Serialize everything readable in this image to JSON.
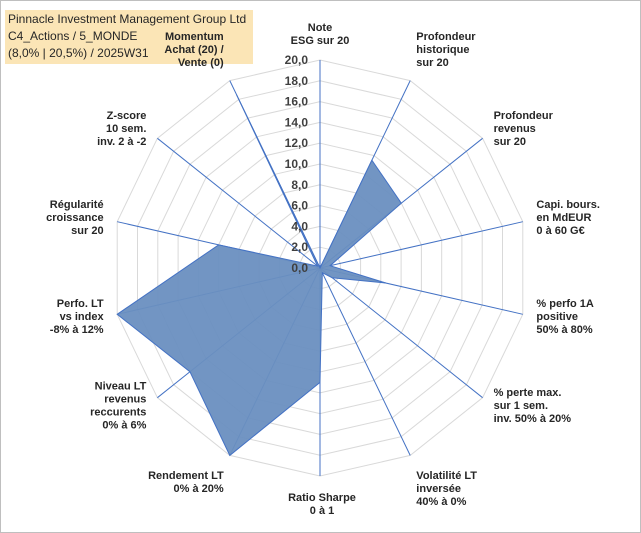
{
  "info_box": {
    "line1": "Pinnacle Investment Management Group Ltd",
    "line2": "C4_Actions / 5_MONDE",
    "line3": "(8,0% | 20,5%) / 2025W31",
    "background": "#fbe5b6"
  },
  "chart_data": {
    "type": "radar",
    "grid": true,
    "rmax": 20,
    "ticks": [
      "0,0",
      "2,0",
      "4,0",
      "6,0",
      "8,0",
      "10,0",
      "12,0",
      "14,0",
      "16,0",
      "18,0",
      "20,0"
    ],
    "colors": {
      "fill": "#6a8fc0",
      "stroke": "#4472c4",
      "grid": "#d9d9d9",
      "spoke": "#4472c4"
    },
    "axes": [
      {
        "lines": [
          "Note",
          "ESG sur 20"
        ],
        "value": 0
      },
      {
        "lines": [
          "Profondeur",
          "historique",
          "sur 20"
        ],
        "value": 11.5
      },
      {
        "lines": [
          "Profondeur",
          "revenus",
          "sur 20"
        ],
        "value": 10
      },
      {
        "lines": [
          "Capi. bours.",
          "en MdEUR",
          "0 à 60 G€"
        ],
        "value": 1
      },
      {
        "lines": [
          "% perfo 1A",
          "positive",
          "50% à 80%"
        ],
        "value": 6.5
      },
      {
        "lines": [
          "% perte max.",
          "sur 1 sem.",
          "inv. 50% à 20%"
        ],
        "value": 1.5
      },
      {
        "lines": [
          "Volatilité LT",
          "inversée",
          "40% à 0%"
        ],
        "value": 0.5
      },
      {
        "lines": [
          "Ratio Sharpe",
          "0 à 1"
        ],
        "value": 11
      },
      {
        "lines": [
          "Rendement LT",
          "0% à 20%"
        ],
        "value": 20
      },
      {
        "lines": [
          "Niveau LT",
          "revenus",
          "reccurents",
          "0% à 6%"
        ],
        "value": 16
      },
      {
        "lines": [
          "Perfo. LT",
          "vs index",
          "-8% à 12%"
        ],
        "value": 20
      },
      {
        "lines": [
          "Régularité",
          "croissance",
          "sur 20"
        ],
        "value": 10
      },
      {
        "lines": [
          "Z-score",
          "10 sem.",
          "inv. 2 à -2"
        ],
        "value": 0.3
      },
      {
        "lines": [
          "Momentum",
          "Achat (20) /",
          "Vente (0)"
        ],
        "value": 18.5
      }
    ]
  }
}
